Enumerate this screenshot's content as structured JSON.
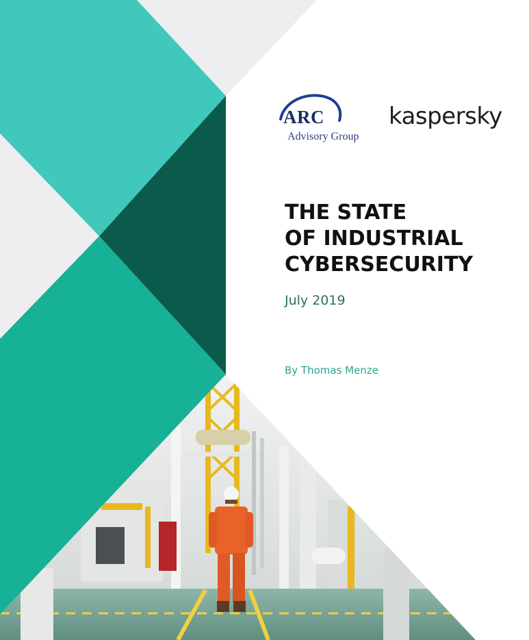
{
  "logos": {
    "arc": {
      "main": "ARC",
      "sub": "Advisory Group"
    },
    "kaspersky": "kaspersky"
  },
  "title_lines": [
    "THE STATE",
    "OF INDUSTRIAL",
    "CYBERSECURITY"
  ],
  "date": "July 2019",
  "author": "By Thomas Menze",
  "colors": {
    "teal_light": "#3fc8bb",
    "teal_mid": "#17b197",
    "teal_dark": "#0a5b4b",
    "panel_gray": "#eeeef0",
    "title_text": "#111111",
    "date_text": "#2d6f64",
    "author_text": "#2aa58c"
  }
}
